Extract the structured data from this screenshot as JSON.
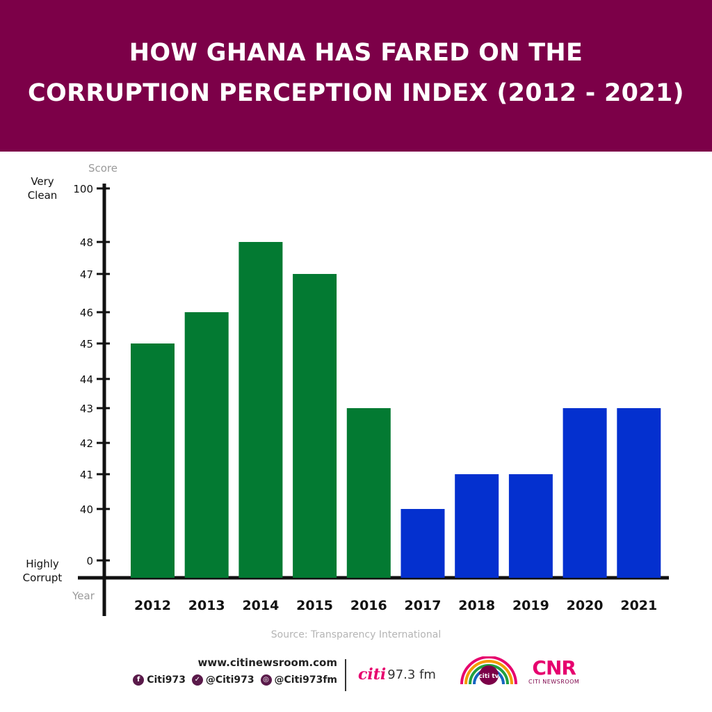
{
  "header": {
    "title_line1": "HOW GHANA HAS FARED ON THE",
    "title_line2": "CORRUPTION PERCEPTION INDEX (2012 - 2021)",
    "background": "#7c0048"
  },
  "chart_data": {
    "type": "bar",
    "categories": [
      "2012",
      "2013",
      "2014",
      "2015",
      "2016",
      "2017",
      "2018",
      "2019",
      "2020",
      "2021"
    ],
    "values": [
      45,
      46,
      48,
      47,
      43,
      40,
      41,
      41,
      43,
      43
    ],
    "bar_colors": [
      "#037a32",
      "#037a32",
      "#037a32",
      "#037a32",
      "#037a32",
      "#0430cf",
      "#0430cf",
      "#0430cf",
      "#0430cf",
      "#0430cf"
    ],
    "y_ticks": [
      "100",
      "48",
      "47",
      "46",
      "45",
      "44",
      "43",
      "42",
      "41",
      "40",
      "0"
    ],
    "y_axis_title": "Score",
    "x_axis_title": "Year",
    "y_top_label": "Very Clean",
    "y_bottom_label": "Highly Corrupt",
    "y_scale": "broken axis (0, 40-48, 100)",
    "grid": false
  },
  "source": "Source: Transparency International",
  "footer": {
    "website": "www.citinewsroom.com",
    "socials": [
      {
        "icon": "facebook-icon",
        "handle": "Citi973"
      },
      {
        "icon": "twitter-icon",
        "handle": "@Citi973"
      },
      {
        "icon": "instagram-icon",
        "handle": "@Citi973fm"
      }
    ],
    "citi_fm_name": "citi",
    "citi_fm_freq": "97.3 fm",
    "citi_tv_name": "citi tv",
    "cnr_mark": "CNR",
    "cnr_name": "CITI NEWSROOM",
    "accent": "#e6006e"
  }
}
